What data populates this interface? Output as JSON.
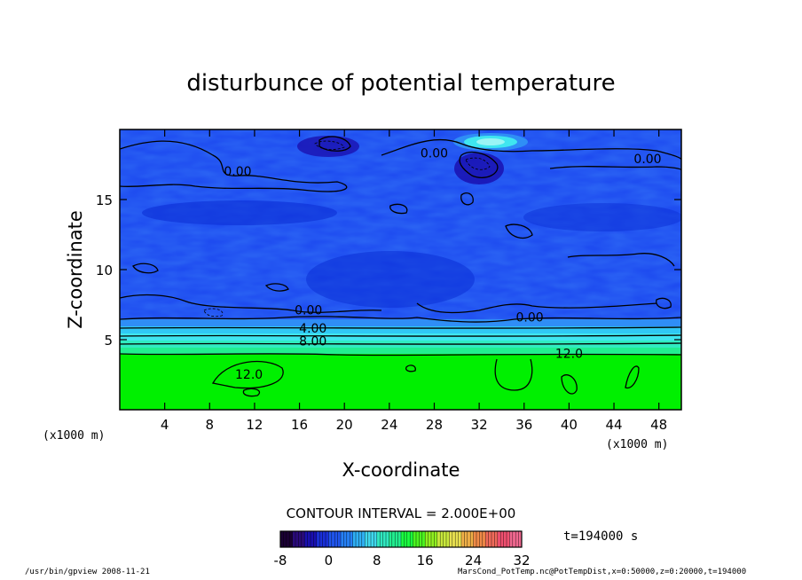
{
  "chart_data": {
    "type": "heatmap",
    "title": "disturbunce of potential temperature",
    "xlabel": "X-coordinate",
    "ylabel": "Z-coordinate",
    "x_unit_left": "(x1000 m)",
    "x_unit_right": "(x1000 m)",
    "xlim": [
      0,
      50
    ],
    "ylim": [
      0,
      20
    ],
    "x_ticks": [
      4,
      8,
      12,
      16,
      20,
      24,
      28,
      32,
      36,
      40,
      44,
      48
    ],
    "y_ticks": [
      5,
      10,
      15
    ],
    "contour_labels": [
      {
        "text": "0.00",
        "x": 10.5,
        "y": 16.7
      },
      {
        "text": "0.00",
        "x": 28.0,
        "y": 18.0
      },
      {
        "text": "0.00",
        "x": 47.0,
        "y": 17.6
      },
      {
        "text": "0.00",
        "x": 16.8,
        "y": 6.8
      },
      {
        "text": "0.00",
        "x": 36.5,
        "y": 6.3
      },
      {
        "text": "4.00",
        "x": 17.2,
        "y": 5.5
      },
      {
        "text": "8.00",
        "x": 17.2,
        "y": 4.6
      },
      {
        "text": "12.0",
        "x": 40.0,
        "y": 3.7
      },
      {
        "text": "12.0",
        "x": 11.5,
        "y": 2.2
      }
    ],
    "contour_interval_label": "CONTOUR INTERVAL = 2.000E+00",
    "colorbar": {
      "min": -8,
      "max": 32,
      "tick_labels": [
        "-8",
        "0",
        "8",
        "16",
        "24",
        "32"
      ],
      "tick_values": [
        -8,
        0,
        8,
        16,
        24,
        32
      ],
      "colors": [
        "#1a0033",
        "#2a0a7a",
        "#1a10b0",
        "#1a30d8",
        "#1f55ee",
        "#2680f5",
        "#2fb0f5",
        "#3fd8ee",
        "#30e8c0",
        "#22ee90",
        "#1aff40",
        "#4cf520",
        "#90f020",
        "#c8e83c",
        "#e8e050",
        "#f0b048",
        "#f08a48",
        "#f06a5a",
        "#f05070",
        "#f06890"
      ]
    },
    "time_label": "t=194000 s",
    "colors": {
      "deep_blue": "#0b2fd6",
      "mid_blue": "#1f55f0",
      "light_blue": "#2f8ef6",
      "cyan": "#3fe6f0",
      "green": "#00f000"
    }
  },
  "footer": {
    "left": "/usr/bin/gpview   2008-11-21",
    "right": "MarsCond_PotTemp.nc@PotTempDist,x=0:50000,z=0:20000,t=194000"
  }
}
